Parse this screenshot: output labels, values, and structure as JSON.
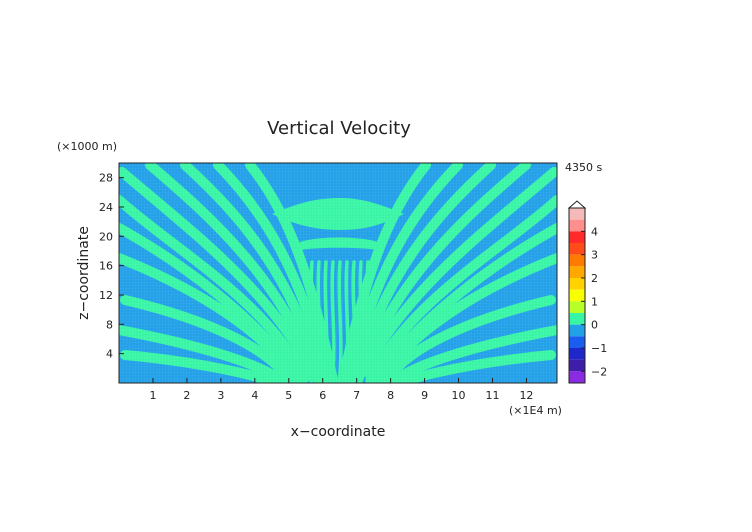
{
  "chart_data": {
    "type": "heatmap",
    "title": "Vertical Velocity",
    "xlabel": "x−coordinate",
    "ylabel": "z−coordinate",
    "x_unit": "(×1E4 m)",
    "y_unit": "(×1000 m)",
    "time_label": "4350 s",
    "xlim": [
      0,
      12.9
    ],
    "ylim": [
      0,
      30
    ],
    "x_ticks": [
      1,
      2,
      3,
      4,
      5,
      6,
      7,
      8,
      9,
      10,
      11,
      12
    ],
    "y_ticks": [
      4,
      8,
      12,
      16,
      20,
      24,
      28
    ],
    "colorbar": {
      "tick_labels": [
        "4",
        "3",
        "2",
        "1",
        "0",
        "−1",
        "−2"
      ],
      "tick_values": [
        4,
        3,
        2,
        1,
        0,
        -1,
        -2
      ],
      "range": [
        -2.5,
        5
      ],
      "levels": [
        {
          "from": 4.5,
          "to": 5.0,
          "color": "#f4b9b9"
        },
        {
          "from": 4.0,
          "to": 4.5,
          "color": "#ff8f8f"
        },
        {
          "from": 3.5,
          "to": 4.0,
          "color": "#ff2b2b"
        },
        {
          "from": 3.0,
          "to": 3.5,
          "color": "#ff4a1a"
        },
        {
          "from": 2.5,
          "to": 3.0,
          "color": "#ff7a00"
        },
        {
          "from": 2.0,
          "to": 2.5,
          "color": "#ffa800"
        },
        {
          "from": 1.5,
          "to": 2.0,
          "color": "#ffd200"
        },
        {
          "from": 1.0,
          "to": 1.5,
          "color": "#f7ff00"
        },
        {
          "from": 0.5,
          "to": 1.0,
          "color": "#b8ff28"
        },
        {
          "from": 0.0,
          "to": 0.5,
          "color": "#38f5a5"
        },
        {
          "from": -0.5,
          "to": 0.0,
          "color": "#22a0e8"
        },
        {
          "from": -1.0,
          "to": -0.5,
          "color": "#1a5ef0"
        },
        {
          "from": -1.5,
          "to": -1.0,
          "color": "#1f27c8"
        },
        {
          "from": -2.0,
          "to": -1.5,
          "color": "#3d1ea8"
        },
        {
          "from": -2.5,
          "to": -2.0,
          "color": "#8a2be2"
        }
      ]
    },
    "field_colors": {
      "positive": "#38f5a5",
      "negative": "#22a0e8"
    }
  }
}
